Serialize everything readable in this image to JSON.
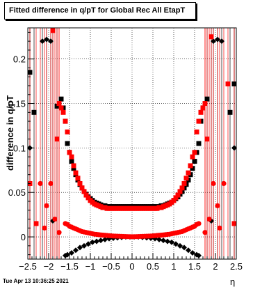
{
  "title": "Fitted difference in q/pT for Global Rec All EtapT",
  "timestamp": "Tue Apr 13 10:36:25 2021",
  "chart_data": {
    "type": "scatter",
    "title": "Fitted difference in q/pT for Global Rec All EtapT",
    "xlabel": "η",
    "ylabel": "difference in q/pT",
    "xlim": [
      -2.5,
      2.5
    ],
    "ylim": [
      -0.025,
      0.235
    ],
    "grid": true,
    "xticks": [
      -2.5,
      -2,
      -1.5,
      -1,
      -0.5,
      0,
      0.5,
      1,
      1.5,
      2,
      2.5
    ],
    "xtick_labels": [
      "−2.5",
      "−2",
      "−1.5",
      "−1",
      "−0.5",
      "0",
      "0.5",
      "1",
      "1.5",
      "2",
      "2.5"
    ],
    "yticks": [
      0,
      0.05,
      0.1,
      0.15,
      0.2
    ],
    "ytick_labels": [
      "0",
      "0.05",
      "0.1",
      "0.15",
      "0.2"
    ],
    "colors": {
      "black": "#000000",
      "red": "#ff0000"
    },
    "series": [
      {
        "color": "black",
        "marker": "diamond",
        "x": [
          -2.45,
          -2.15,
          -2.05,
          -1.95,
          -1.9,
          -1.6,
          -1.55,
          -1.45,
          -1.35,
          -1.25,
          -1.15,
          -1.05,
          -0.95,
          -0.85,
          -0.75,
          -0.65,
          -0.55,
          -0.45,
          -0.35,
          -0.25,
          -0.15,
          -0.05,
          0.05,
          0.15,
          0.25,
          0.35,
          0.45,
          0.55,
          0.65,
          0.75,
          0.85,
          0.95,
          1.05,
          1.15,
          1.25,
          1.35,
          1.45,
          1.55,
          1.6,
          1.9,
          1.95,
          2.05,
          2.15,
          2.45
        ],
        "y": [
          0.1,
          0.22,
          0.222,
          0.22,
          0.018,
          -0.021,
          -0.02,
          -0.018,
          -0.015,
          -0.012,
          -0.01,
          -0.008,
          -0.006,
          -0.005,
          -0.004,
          -0.003,
          -0.002,
          -0.0015,
          -0.001,
          -0.0005,
          0.0,
          0.0,
          0.0,
          0.0,
          -0.0005,
          -0.001,
          -0.0015,
          -0.002,
          -0.003,
          -0.004,
          -0.005,
          -0.006,
          -0.008,
          -0.01,
          -0.012,
          -0.015,
          -0.018,
          -0.02,
          -0.021,
          0.018,
          0.22,
          0.222,
          0.22,
          0.1
        ]
      },
      {
        "color": "red",
        "marker": "circle",
        "x": [
          -2.2,
          -2.1,
          -2.05,
          -1.95,
          -1.85,
          -1.75,
          -1.6,
          -1.55,
          -1.5,
          -1.45,
          -1.4,
          -1.35,
          -1.3,
          -1.25,
          -1.2,
          -1.15,
          -1.1,
          -1.05,
          -1.0,
          -0.95,
          -0.9,
          -0.85,
          -0.8,
          -0.75,
          -0.7,
          -0.65,
          -0.6,
          -0.55,
          -0.5,
          -0.45,
          -0.4,
          -0.35,
          -0.3,
          -0.25,
          -0.2,
          -0.15,
          -0.1,
          -0.05,
          0.0,
          0.05,
          0.1,
          0.15,
          0.2,
          0.25,
          0.3,
          0.35,
          0.4,
          0.45,
          0.5,
          0.55,
          0.6,
          0.65,
          0.7,
          0.75,
          0.8,
          0.85,
          0.9,
          0.95,
          1.0,
          1.05,
          1.1,
          1.15,
          1.2,
          1.25,
          1.3,
          1.35,
          1.4,
          1.45,
          1.5,
          1.55,
          1.6,
          1.75,
          1.85,
          1.95,
          2.05,
          2.1,
          2.2
        ],
        "y": [
          0.06,
          0.01,
          0.035,
          0.06,
          0.02,
          0.005,
          0.015,
          0.014,
          0.012,
          0.011,
          0.01,
          0.009,
          0.008,
          0.007,
          0.006,
          0.0055,
          0.005,
          0.0045,
          0.004,
          0.0035,
          0.003,
          0.0028,
          0.0025,
          0.0022,
          0.002,
          0.0018,
          0.0016,
          0.0014,
          0.0012,
          0.001,
          0.0009,
          0.0008,
          0.0007,
          0.0006,
          0.0005,
          0.0004,
          0.0003,
          0.0002,
          0.0002,
          0.0002,
          0.0003,
          0.0004,
          0.0005,
          0.0006,
          0.0007,
          0.0008,
          0.0009,
          0.001,
          0.0012,
          0.0014,
          0.0016,
          0.0018,
          0.002,
          0.0022,
          0.0025,
          0.0028,
          0.003,
          0.0035,
          0.004,
          0.0045,
          0.005,
          0.0055,
          0.006,
          0.007,
          0.008,
          0.009,
          0.01,
          0.011,
          0.012,
          0.014,
          0.015,
          0.005,
          0.02,
          0.06,
          0.035,
          0.01,
          0.06
        ]
      },
      {
        "color": "black",
        "marker": "square",
        "x": [
          -2.45,
          -2.35,
          -1.8,
          -1.7,
          -1.65,
          -1.6,
          -1.55,
          -1.5,
          -1.45,
          -1.4,
          -1.35,
          -1.3,
          -1.25,
          -1.2,
          -1.15,
          -1.1,
          -1.05,
          -1.0,
          -0.95,
          -0.9,
          -0.85,
          -0.8,
          -0.75,
          -0.7,
          -0.65,
          -0.6,
          -0.55,
          -0.5,
          -0.45,
          -0.4,
          -0.35,
          -0.3,
          -0.25,
          -0.2,
          -0.15,
          -0.1,
          -0.05,
          0.0,
          0.05,
          0.1,
          0.15,
          0.2,
          0.25,
          0.3,
          0.35,
          0.4,
          0.45,
          0.5,
          0.55,
          0.6,
          0.65,
          0.7,
          0.75,
          0.8,
          0.85,
          0.9,
          0.95,
          1.0,
          1.05,
          1.1,
          1.15,
          1.2,
          1.25,
          1.3,
          1.35,
          1.4,
          1.45,
          1.5,
          1.55,
          1.6,
          1.65,
          1.7,
          1.8,
          2.35,
          2.45
        ],
        "y": [
          0.185,
          0.14,
          0.147,
          0.155,
          0.145,
          0.13,
          0.105,
          0.095,
          0.085,
          0.077,
          0.07,
          0.064,
          0.059,
          0.055,
          0.051,
          0.048,
          0.045,
          0.043,
          0.041,
          0.039,
          0.038,
          0.037,
          0.036,
          0.035,
          0.035,
          0.034,
          0.034,
          0.034,
          0.034,
          0.034,
          0.034,
          0.034,
          0.034,
          0.034,
          0.034,
          0.034,
          0.034,
          0.034,
          0.034,
          0.034,
          0.034,
          0.034,
          0.034,
          0.034,
          0.034,
          0.034,
          0.034,
          0.034,
          0.034,
          0.034,
          0.034,
          0.035,
          0.035,
          0.036,
          0.037,
          0.038,
          0.039,
          0.041,
          0.043,
          0.045,
          0.048,
          0.051,
          0.055,
          0.059,
          0.064,
          0.07,
          0.077,
          0.085,
          0.095,
          0.105,
          0.13,
          0.145,
          0.155,
          0.14,
          0.172
        ]
      },
      {
        "color": "red",
        "marker": "square",
        "x": [
          -2.45,
          -2.3,
          -1.9,
          -1.8,
          -1.75,
          -1.7,
          -1.65,
          -1.6,
          -1.55,
          -1.5,
          -1.45,
          -1.4,
          -1.35,
          -1.3,
          -1.25,
          -1.2,
          -1.15,
          -1.1,
          -1.05,
          -1.0,
          -0.95,
          -0.9,
          -0.85,
          -0.8,
          -0.75,
          -0.7,
          -0.65,
          -0.6,
          -0.55,
          -0.5,
          -0.45,
          -0.4,
          -0.35,
          -0.3,
          -0.25,
          -0.2,
          -0.15,
          -0.1,
          -0.05,
          0.0,
          0.05,
          0.1,
          0.15,
          0.2,
          0.25,
          0.3,
          0.35,
          0.4,
          0.45,
          0.5,
          0.55,
          0.6,
          0.65,
          0.7,
          0.75,
          0.8,
          0.85,
          0.9,
          0.95,
          1.0,
          1.05,
          1.1,
          1.15,
          1.2,
          1.25,
          1.3,
          1.35,
          1.4,
          1.45,
          1.5,
          1.55,
          1.6,
          1.65,
          1.7,
          1.75,
          1.8,
          1.9,
          2.3,
          2.45
        ],
        "y": [
          0.06,
          0.015,
          0.232,
          0.11,
          0.15,
          0.145,
          0.14,
          0.13,
          0.118,
          0.095,
          0.09,
          0.08,
          0.072,
          0.066,
          0.06,
          0.055,
          0.051,
          0.047,
          0.044,
          0.041,
          0.039,
          0.037,
          0.036,
          0.035,
          0.034,
          0.033,
          0.033,
          0.032,
          0.032,
          0.032,
          0.032,
          0.032,
          0.032,
          0.032,
          0.032,
          0.032,
          0.032,
          0.032,
          0.032,
          0.032,
          0.032,
          0.032,
          0.032,
          0.032,
          0.032,
          0.032,
          0.032,
          0.032,
          0.032,
          0.032,
          0.032,
          0.032,
          0.033,
          0.033,
          0.034,
          0.035,
          0.036,
          0.037,
          0.039,
          0.041,
          0.044,
          0.047,
          0.051,
          0.055,
          0.06,
          0.066,
          0.072,
          0.08,
          0.09,
          0.095,
          0.118,
          0.13,
          0.14,
          0.145,
          0.15,
          0.11,
          0.225,
          0.172,
          0.015
        ]
      }
    ]
  }
}
